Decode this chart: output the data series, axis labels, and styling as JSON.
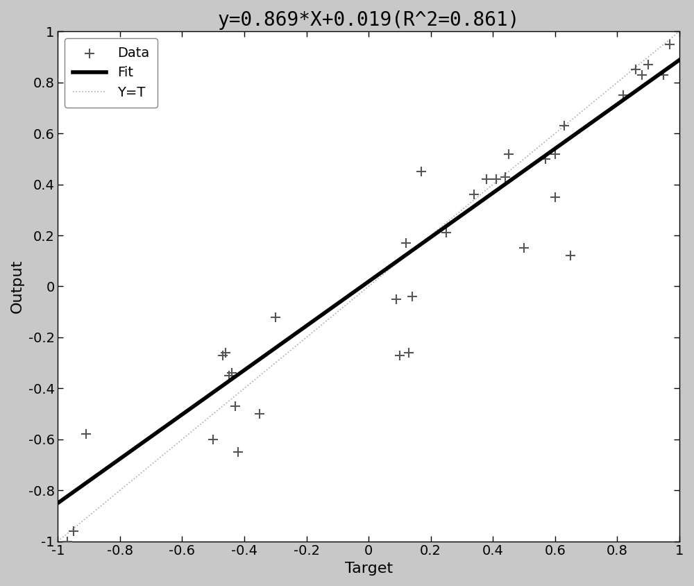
{
  "title": "y=0.869*X+0.019(R^2=0.861)",
  "xlabel": "Target",
  "ylabel": "Output",
  "xlim": [
    -1,
    1
  ],
  "ylim": [
    -1,
    1
  ],
  "fit_slope": 0.869,
  "fit_intercept": 0.019,
  "xticks": [
    -1.0,
    -0.8,
    -0.6,
    -0.4,
    -0.2,
    0.0,
    0.2,
    0.4,
    0.6,
    0.8,
    1.0
  ],
  "yticks": [
    -1.0,
    -0.8,
    -0.6,
    -0.4,
    -0.2,
    0.0,
    0.2,
    0.4,
    0.6,
    0.8,
    1.0
  ],
  "data_x": [
    -0.97,
    -0.95,
    -0.91,
    -0.5,
    -0.47,
    -0.46,
    -0.45,
    -0.44,
    -0.43,
    -0.42,
    -0.35,
    -0.3,
    0.09,
    0.14,
    0.1,
    0.13,
    0.12,
    0.17,
    0.25,
    0.34,
    0.38,
    0.41,
    0.44,
    0.45,
    0.5,
    0.57,
    0.6,
    0.6,
    0.63,
    0.65,
    0.82,
    0.86,
    0.88,
    0.9,
    0.95,
    0.97
  ],
  "data_y": [
    -1.0,
    -0.96,
    -0.58,
    -0.6,
    -0.27,
    -0.26,
    -0.35,
    -0.34,
    -0.47,
    -0.65,
    -0.5,
    -0.12,
    -0.05,
    -0.04,
    -0.27,
    -0.26,
    0.17,
    0.45,
    0.21,
    0.36,
    0.42,
    0.42,
    0.43,
    0.52,
    0.15,
    0.5,
    0.52,
    0.35,
    0.63,
    0.12,
    0.75,
    0.85,
    0.83,
    0.87,
    0.83,
    0.95
  ],
  "data_color": "#555555",
  "fit_color": "#000000",
  "fit_linewidth": 4.0,
  "yt_color": "#aaaaaa",
  "yt_linewidth": 1.2,
  "marker_size": 100,
  "marker_linewidth": 1.5,
  "figure_facecolor": "#c8c8c8",
  "axes_facecolor": "#ffffff",
  "title_fontsize": 20,
  "label_fontsize": 16,
  "tick_fontsize": 14,
  "legend_fontsize": 14
}
